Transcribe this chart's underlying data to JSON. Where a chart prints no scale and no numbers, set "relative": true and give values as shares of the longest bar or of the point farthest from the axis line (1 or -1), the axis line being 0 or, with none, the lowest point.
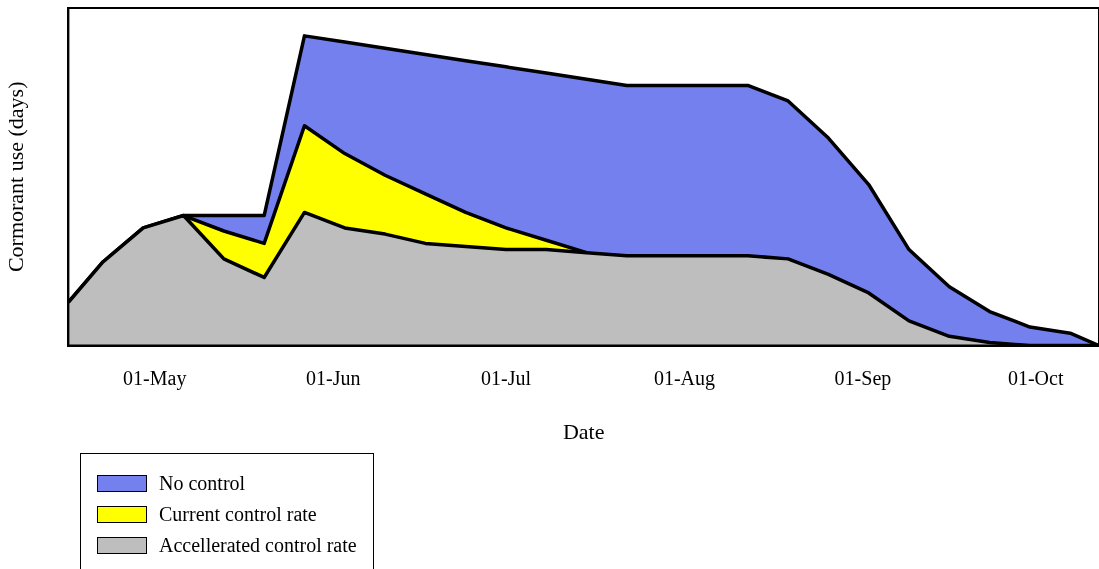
{
  "chart_data": {
    "type": "area",
    "relative": true,
    "xlabel": "Date",
    "ylabel": "Cormorant use (days)",
    "x": [
      "--04-16",
      "--04-22",
      "--04-29",
      "--05-06",
      "--05-13",
      "--05-20",
      "--05-27",
      "--06-03",
      "--06-10",
      "--06-17",
      "--06-24",
      "--07-01",
      "--07-08",
      "--07-15",
      "--07-22",
      "--07-29",
      "--08-05",
      "--08-12",
      "--08-19",
      "--08-26",
      "--09-02",
      "--09-09",
      "--09-16",
      "--09-23",
      "--09-30",
      "--10-07",
      "--10-12"
    ],
    "xlim": [
      "--04-16",
      "--10-12"
    ],
    "xticks": [
      {
        "value": "--05-01",
        "label": "01-May"
      },
      {
        "value": "--06-01",
        "label": "01-Jun"
      },
      {
        "value": "--07-01",
        "label": "01-Jul"
      },
      {
        "value": "--08-01",
        "label": "01-Aug"
      },
      {
        "value": "--09-01",
        "label": "01-Sep"
      },
      {
        "value": "--10-01",
        "label": "01-Oct"
      }
    ],
    "series": [
      {
        "name": "No control",
        "color": "#7380ee",
        "values": [
          0.14,
          0.27,
          0.38,
          0.42,
          0.42,
          0.42,
          1.0,
          0.98,
          0.96,
          0.94,
          0.92,
          0.9,
          0.88,
          0.86,
          0.84,
          0.84,
          0.84,
          0.84,
          0.79,
          0.67,
          0.52,
          0.31,
          0.19,
          0.11,
          0.06,
          0.04,
          0
        ]
      },
      {
        "name": "Current control rate",
        "color": "#ffff00",
        "values": [
          null,
          null,
          null,
          0.42,
          0.37,
          0.33,
          0.71,
          0.62,
          0.55,
          0.49,
          0.43,
          0.38,
          0.34,
          0.3,
          null,
          null,
          null,
          null,
          null,
          null,
          null,
          null,
          null,
          null,
          null,
          null,
          null
        ]
      },
      {
        "name": "Accellerated control rate",
        "color": "#bebebe",
        "values": [
          0.14,
          0.27,
          0.38,
          0.42,
          0.28,
          0.22,
          0.43,
          0.38,
          0.36,
          0.33,
          0.32,
          0.31,
          0.31,
          0.3,
          0.29,
          0.29,
          0.29,
          0.29,
          0.28,
          0.23,
          0.17,
          0.08,
          0.03,
          0.01,
          0,
          0,
          0
        ]
      }
    ],
    "legend": "bottom left",
    "grid": false
  }
}
